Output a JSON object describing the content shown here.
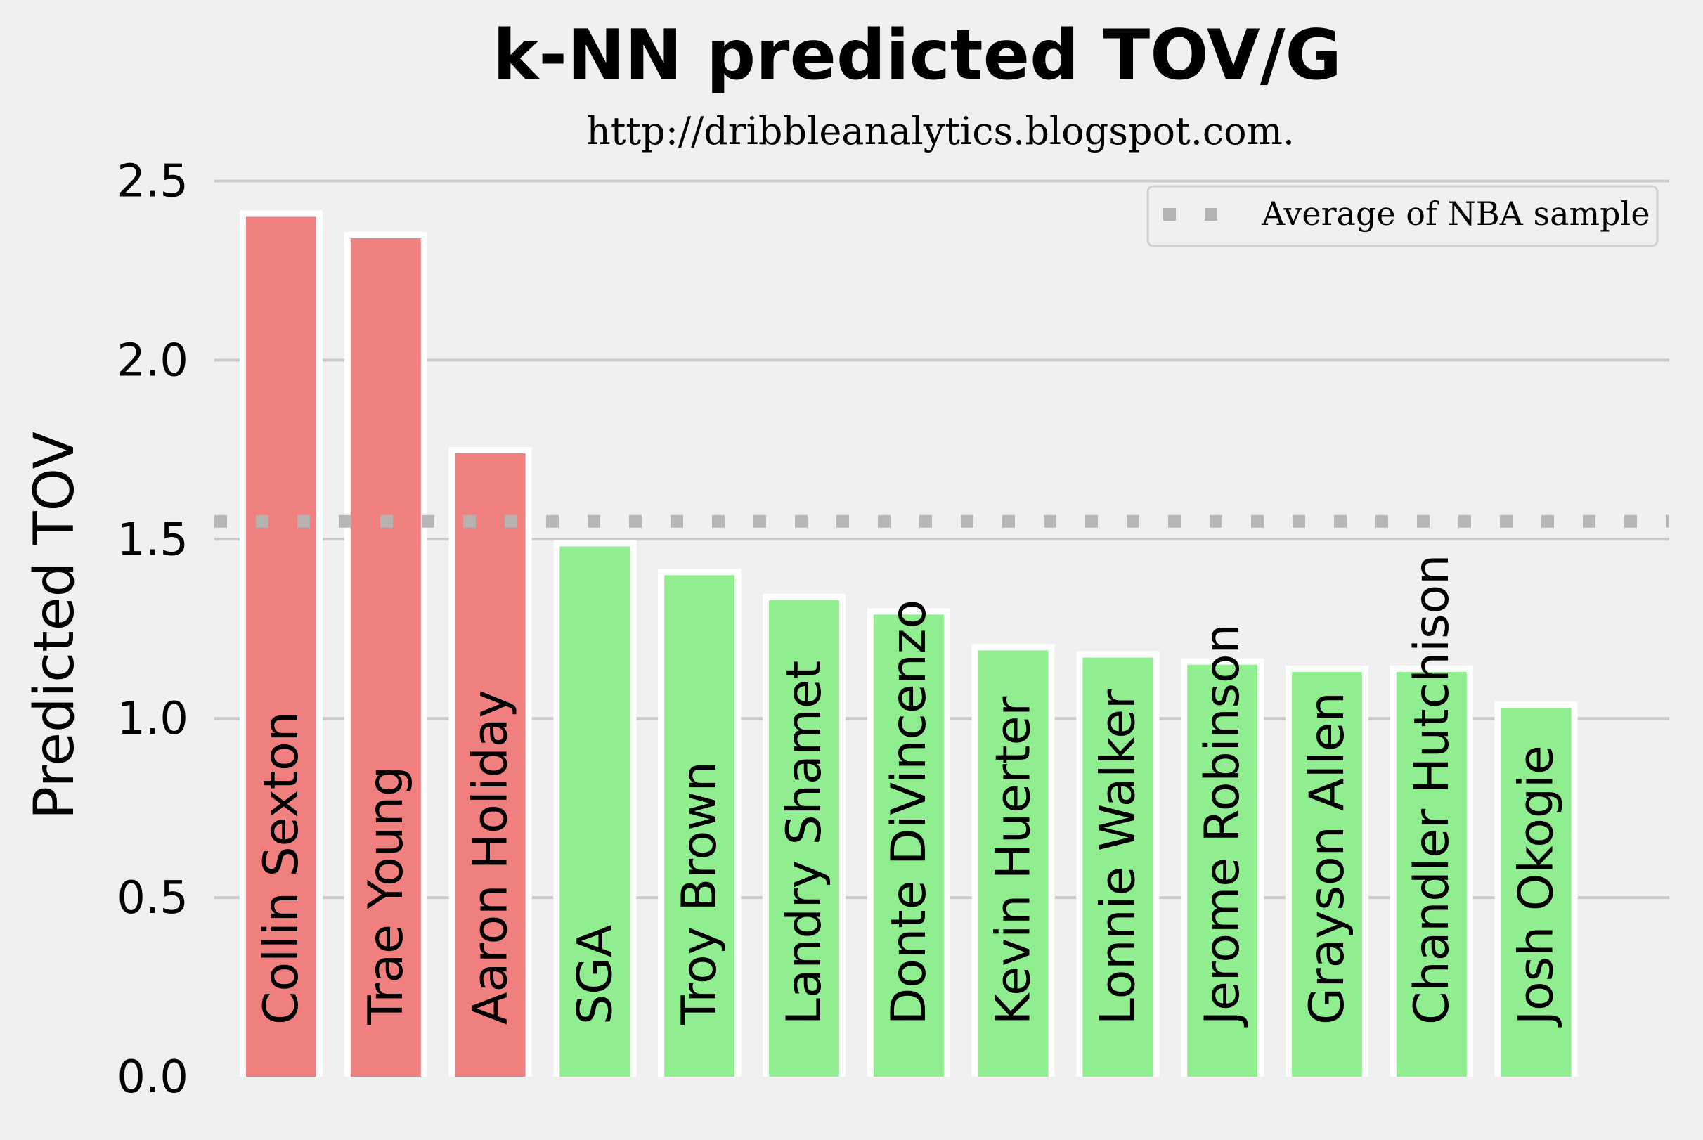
{
  "chart_data": {
    "type": "bar",
    "title": "k-NN predicted TOV/G",
    "subtitle": "http://dribbleanalytics.blogspot.com.",
    "xlabel": "",
    "ylabel": "Predicted TOV",
    "ylim": [
      0,
      2.55
    ],
    "yticks": [
      "0.0",
      "0.5",
      "1.0",
      "1.5",
      "2.0",
      "2.5"
    ],
    "ytick_values": [
      0,
      0.5,
      1.0,
      1.5,
      2.0,
      2.5
    ],
    "grid": "horizontal",
    "legend_position": "top-right",
    "average_line": {
      "label": "Average of NBA sample",
      "value": 1.55,
      "color": "#b3b3b3",
      "style": "dotted"
    },
    "colors": {
      "above_average": "#f08080",
      "below_average": "#90ee90",
      "bar_edge": "#ffffff",
      "grid": "#cbcbcb",
      "background": "#f0f0f0"
    },
    "categories": [
      "Collin Sexton",
      "Trae Young",
      "Aaron Holiday",
      "SGA",
      "Troy Brown",
      "Landry Shamet",
      "Donte DiVincenzo",
      "Kevin Huerter",
      "Lonnie Walker",
      "Jerome Robinson",
      "Grayson Allen",
      "Chandler Hutchison",
      "Josh Okogie"
    ],
    "values": [
      2.4,
      2.34,
      1.74,
      1.48,
      1.4,
      1.33,
      1.29,
      1.19,
      1.17,
      1.15,
      1.13,
      1.13,
      1.03
    ]
  }
}
